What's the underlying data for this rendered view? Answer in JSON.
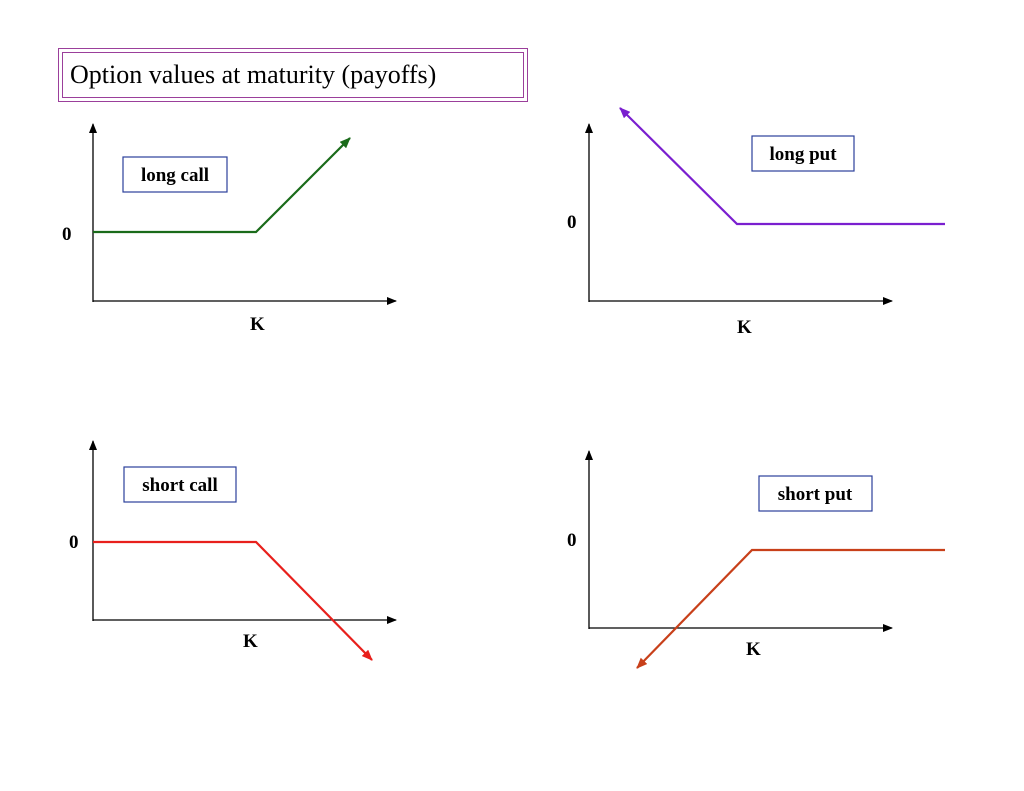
{
  "title": "Option values at maturity (payoffs)",
  "panels": [
    {
      "id": "long-call",
      "label": "long call",
      "zero_label": "0",
      "strike_label": "K",
      "line_color": "#1a6b1a"
    },
    {
      "id": "long-put",
      "label": "long put",
      "zero_label": "0",
      "strike_label": "K",
      "line_color": "#7a1fcf"
    },
    {
      "id": "short-call",
      "label": "short call",
      "zero_label": "0",
      "strike_label": "K",
      "line_color": "#e8201c"
    },
    {
      "id": "short-put",
      "label": "short put",
      "zero_label": "0",
      "strike_label": "K",
      "line_color": "#c8401a"
    }
  ],
  "colors": {
    "title_border": "#9b3f9b",
    "label_box_border": "#2b3f9b",
    "axis": "#000000"
  }
}
